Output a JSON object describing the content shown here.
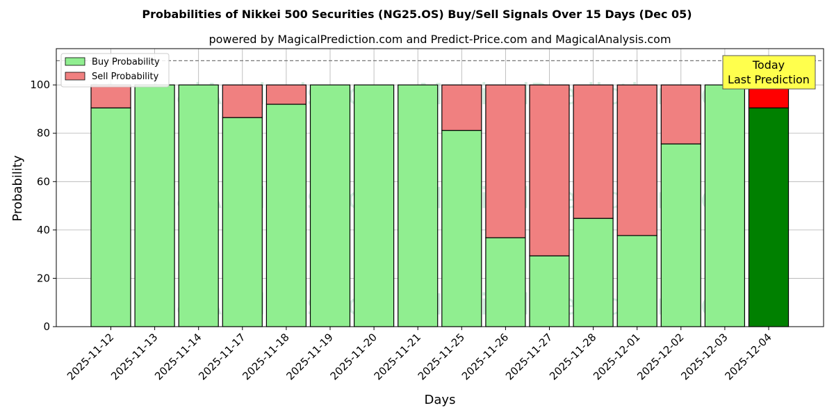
{
  "chart_data": {
    "type": "bar",
    "stacked": true,
    "title": "Probabilities of Nikkei 500 Securities (NG25.OS) Buy/Sell Signals Over 15 Days (Dec 05)",
    "subtitle": "powered by MagicalPrediction.com and Predict-Price.com and MagicalAnalysis.com",
    "xlabel": "Days",
    "ylabel": "Probability",
    "ylim": [
      0,
      115
    ],
    "yticks": [
      0,
      20,
      40,
      60,
      80,
      100
    ],
    "reference_line": 110,
    "grid": true,
    "legend_placement": "top-left",
    "categories": [
      "2025-11-12",
      "2025-11-13",
      "2025-11-14",
      "2025-11-17",
      "2025-11-18",
      "2025-11-19",
      "2025-11-20",
      "2025-11-21",
      "2025-11-25",
      "2025-11-26",
      "2025-11-27",
      "2025-11-28",
      "2025-12-01",
      "2025-12-02",
      "2025-12-03",
      "2025-12-04"
    ],
    "series": [
      {
        "name": "Buy Probability",
        "color": "#90ee90",
        "highlight_color": "#008000",
        "values": [
          90.5,
          100,
          100,
          86.5,
          92,
          100,
          100,
          100,
          81.2,
          36.8,
          29.3,
          44.8,
          37.7,
          75.6,
          100,
          90.5
        ]
      },
      {
        "name": "Sell Probability",
        "color": "#f08080",
        "highlight_color": "#ff0000",
        "values": [
          9.5,
          0,
          0,
          13.5,
          8,
          0,
          0,
          0,
          18.8,
          63.2,
          70.7,
          55.2,
          62.3,
          24.4,
          0,
          9.5
        ]
      }
    ],
    "highlight_index": 15,
    "annotation": {
      "line1": "Today",
      "line2": "Last Prediction",
      "bg": "#ffff4d"
    },
    "watermarks": [
      "MagicalAnalysis.com",
      "MagicalPrediction.com"
    ]
  }
}
